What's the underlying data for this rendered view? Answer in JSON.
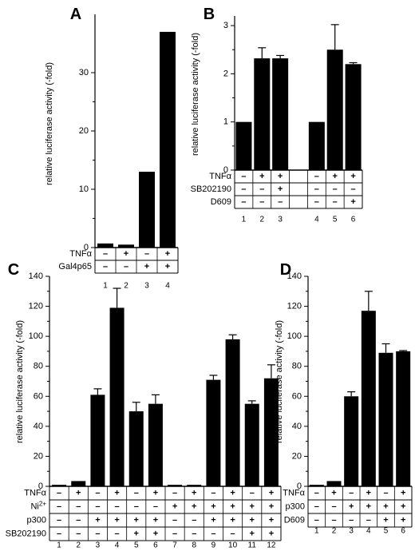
{
  "chart_data": [
    {
      "panel": "A",
      "type": "bar",
      "ylabel": "relative luciferase activity (-fold)",
      "ylim": [
        0,
        40
      ],
      "yticks": [
        0,
        10,
        20,
        30
      ],
      "lanes": [
        "1",
        "2",
        "3",
        "4"
      ],
      "values": [
        0.7,
        0.5,
        13,
        37
      ],
      "errors": [
        0,
        0,
        0,
        0
      ],
      "treatments": [
        {
          "name": "TNFα",
          "signs": [
            "–",
            "+",
            "–",
            "+"
          ]
        },
        {
          "name": "Gal4p65",
          "signs": [
            "–",
            "–",
            "+",
            "+"
          ]
        }
      ]
    },
    {
      "panel": "B",
      "type": "bar",
      "ylabel": "relative luciferase activity (-fold)",
      "ylim": [
        0,
        3.2
      ],
      "yticks": [
        0,
        1,
        2,
        3
      ],
      "lanes": [
        "1",
        "2",
        "3",
        "",
        "4",
        "5",
        "6"
      ],
      "values": [
        1.0,
        2.32,
        2.32,
        null,
        1.0,
        2.5,
        2.2
      ],
      "errors": [
        0,
        0.22,
        0.06,
        null,
        0,
        0.52,
        0.03
      ],
      "treatments": [
        {
          "name": "TNFα",
          "signs": [
            "–",
            "+",
            "+",
            "",
            "–",
            "+",
            "+"
          ]
        },
        {
          "name": "SB202190",
          "signs": [
            "–",
            "–",
            "+",
            "",
            "–",
            "–",
            "–"
          ]
        },
        {
          "name": "D609",
          "signs": [
            "–",
            "–",
            "–",
            "",
            "–",
            "–",
            "+"
          ]
        }
      ]
    },
    {
      "panel": "C",
      "type": "bar",
      "ylabel": "relative luciferase activity (-fold)",
      "ylim": [
        0,
        140
      ],
      "yticks": [
        0,
        20,
        40,
        60,
        80,
        100,
        120,
        140
      ],
      "lanes": [
        "1",
        "2",
        "3",
        "4",
        "5",
        "6",
        "7",
        "8",
        "9",
        "10",
        "11",
        "12"
      ],
      "values": [
        1,
        3.5,
        61,
        119,
        50,
        55,
        1,
        1,
        71,
        98,
        55,
        72
      ],
      "errors": [
        0,
        0,
        4,
        13,
        6,
        6,
        0,
        0,
        3,
        3,
        2,
        9
      ],
      "treatments": [
        {
          "name": "TNFα",
          "signs": [
            "–",
            "+",
            "–",
            "+",
            "–",
            "+",
            "–",
            "+",
            "–",
            "+",
            "–",
            "+"
          ]
        },
        {
          "name": "Ni²⁺",
          "signs": [
            "–",
            "–",
            "–",
            "–",
            "–",
            "–",
            "+",
            "+",
            "+",
            "+",
            "+",
            "+"
          ]
        },
        {
          "name": "p300",
          "signs": [
            "–",
            "–",
            "+",
            "+",
            "+",
            "+",
            "–",
            "–",
            "+",
            "+",
            "+",
            "+"
          ]
        },
        {
          "name": "SB202190",
          "signs": [
            "–",
            "–",
            "–",
            "–",
            "+",
            "+",
            "–",
            "–",
            "–",
            "–",
            "+",
            "+"
          ]
        }
      ]
    },
    {
      "panel": "D",
      "type": "bar",
      "ylabel": "relative luciferase activity (-fold)",
      "ylim": [
        0,
        140
      ],
      "yticks": [
        0,
        20,
        40,
        60,
        80,
        100,
        120,
        140
      ],
      "lanes": [
        "1",
        "2",
        "3",
        "4",
        "5",
        "6"
      ],
      "values": [
        1,
        3.5,
        60,
        117,
        89,
        90
      ],
      "errors": [
        0,
        0,
        3,
        13,
        6,
        0.5
      ],
      "treatments": [
        {
          "name": "TNFα",
          "signs": [
            "–",
            "+",
            "–",
            "+",
            "–",
            "+"
          ]
        },
        {
          "name": "p300",
          "signs": [
            "–",
            "–",
            "+",
            "+",
            "+",
            "+"
          ]
        },
        {
          "name": "D609",
          "signs": [
            "–",
            "–",
            "–",
            "–",
            "+",
            "+"
          ]
        }
      ]
    }
  ]
}
